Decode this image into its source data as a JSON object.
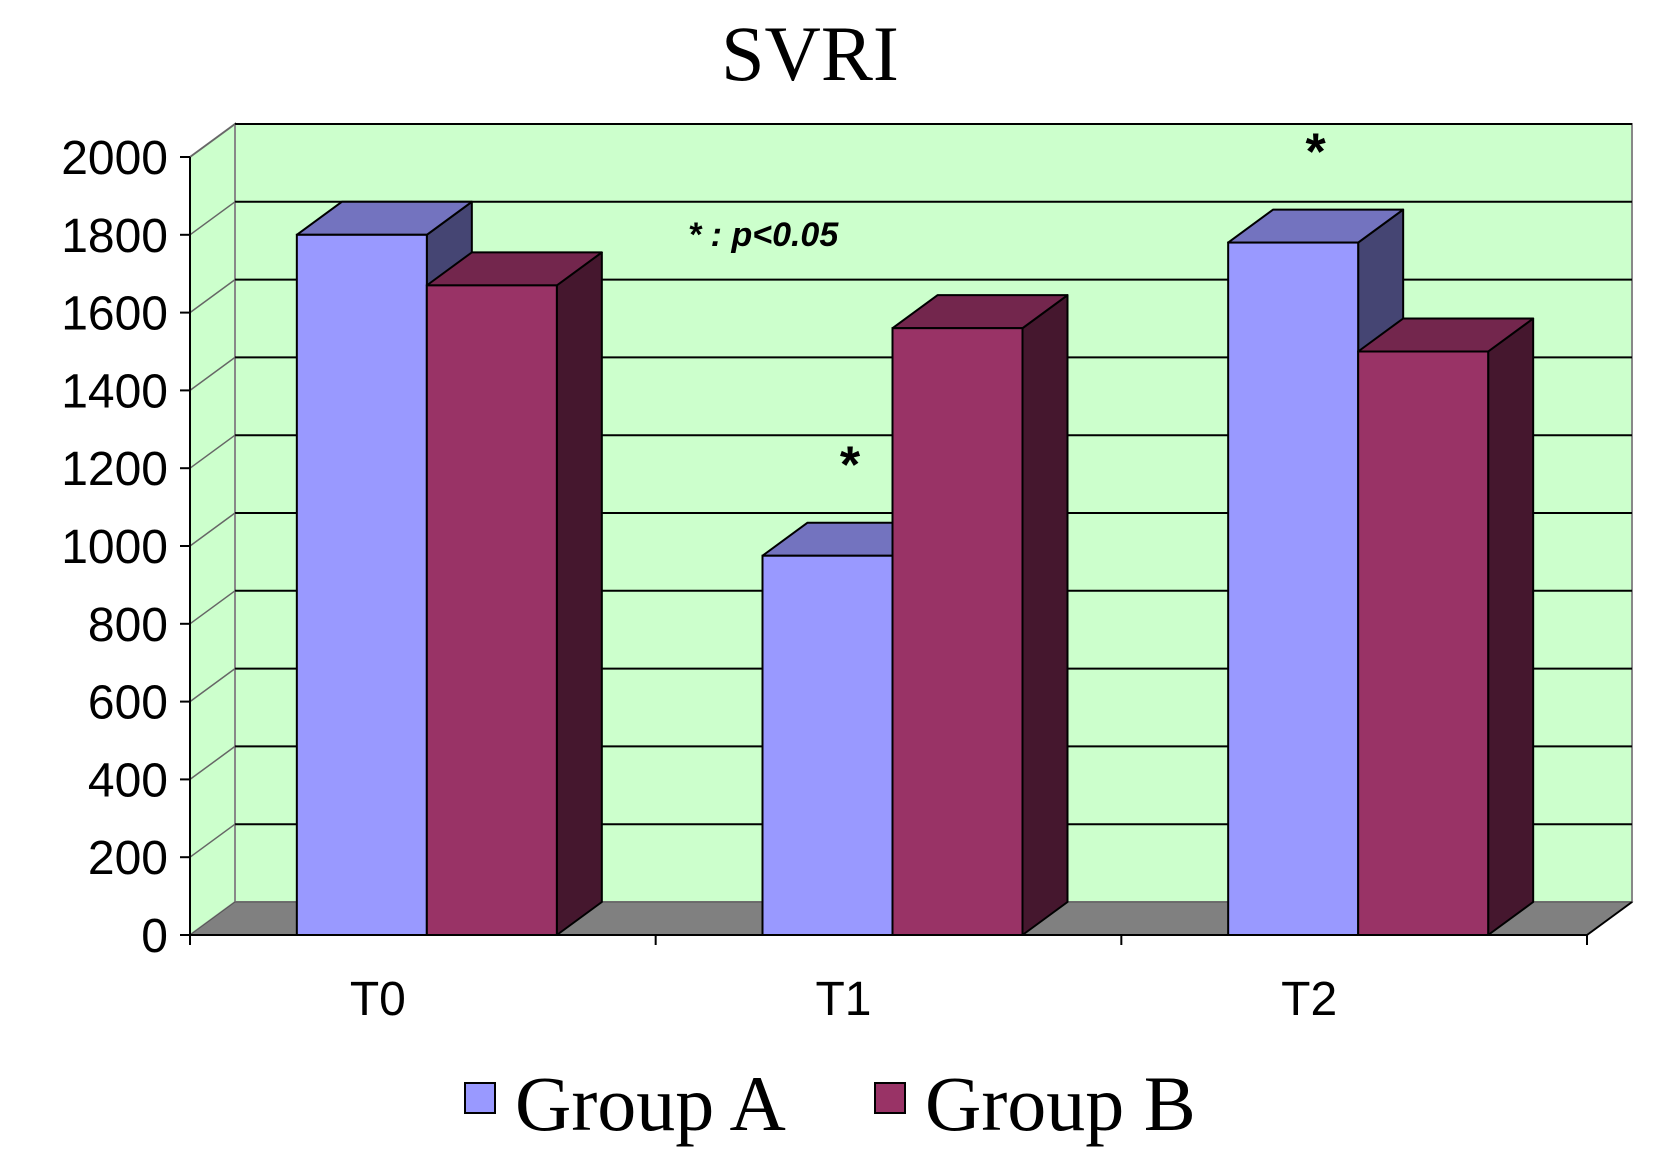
{
  "chart_data": {
    "type": "bar",
    "title": "SVRI",
    "categories": [
      "T0",
      "T1",
      "T2"
    ],
    "series": [
      {
        "name": "Group A",
        "values": [
          1800,
          975,
          1780
        ],
        "color": "#9999ff"
      },
      {
        "name": "Group B",
        "values": [
          1670,
          1560,
          1500
        ],
        "color": "#993366"
      }
    ],
    "ylim": [
      0,
      2000
    ],
    "yticks": [
      0,
      200,
      400,
      600,
      800,
      1000,
      1200,
      1400,
      1600,
      1800,
      2000
    ],
    "xlabel": "",
    "ylabel": "",
    "grid": true,
    "legend_position": "bottom",
    "plot_background": "#ccffcc",
    "floor_color": "#808080",
    "annotations": [
      {
        "text": "*",
        "category": "T1",
        "series": "Group A"
      },
      {
        "text": "*",
        "category": "T2",
        "series": "Group A"
      }
    ],
    "significance_note": "* : p<0.05"
  }
}
